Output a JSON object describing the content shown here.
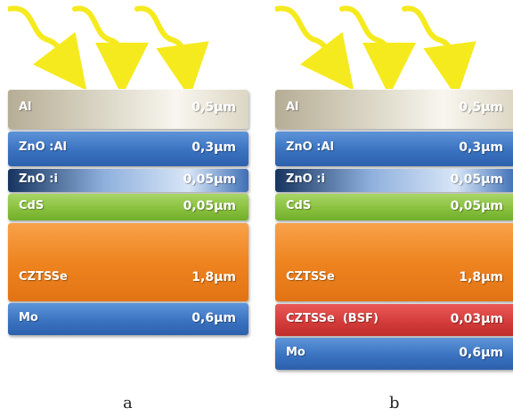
{
  "panels": [
    {
      "caption": "a",
      "layers": [
        {
          "name": "Al",
          "thickness": "0,5µm"
        },
        {
          "name": "ZnO :Al",
          "thickness": "0,3µm"
        },
        {
          "name": "ZnO :i",
          "thickness": "0,05µm"
        },
        {
          "name": "CdS",
          "thickness": "0,05µm"
        },
        {
          "name": "CZTSSe",
          "thickness": "1,8µm"
        },
        {
          "name": "Mo",
          "thickness": "0,6µm"
        }
      ]
    },
    {
      "caption": "b",
      "layers": [
        {
          "name": "Al",
          "thickness": "0,5µm"
        },
        {
          "name": "ZnO :Al",
          "thickness": "0,3µm"
        },
        {
          "name": "ZnO :i",
          "thickness": "0,05µm"
        },
        {
          "name": "CdS",
          "thickness": "0,05µm"
        },
        {
          "name": "CZTSSe",
          "thickness": "1,8µm"
        },
        {
          "name": "CZTSSe  (BSF)",
          "thickness": "0,03µm"
        },
        {
          "name": "Mo",
          "thickness": "0,6µm"
        }
      ]
    }
  ],
  "colors": {
    "light_arrows": "#f5ea1e",
    "al": "#e0dccd",
    "zno_al": "#3a72c0",
    "zno_i": "#8fb0dd",
    "cds": "#86bf3c",
    "czts": "#ee8420",
    "bsf": "#d23a38",
    "mo": "#3a73c1"
  },
  "icons": [
    "sunlight-arrow-icon"
  ]
}
